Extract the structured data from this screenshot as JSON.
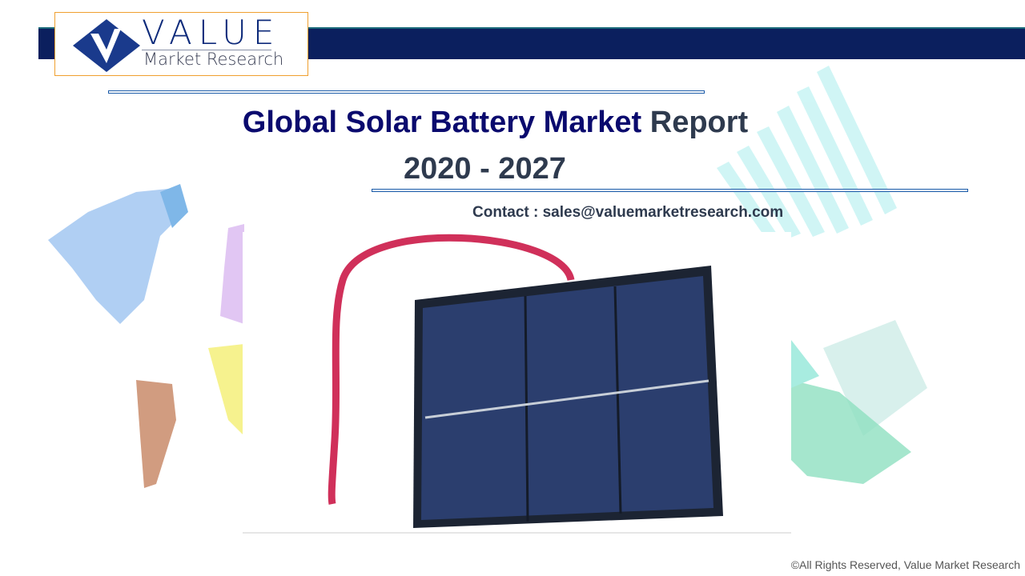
{
  "logo": {
    "brand": "VALUE",
    "subtitle": "Market Research"
  },
  "title": {
    "main": "Global Solar Battery Market",
    "suffix": "Report",
    "years": "2020 - 2027"
  },
  "contact": "Contact : sales@valuemarketresearch.com",
  "footer": "©All Rights Reserved, Value Market Research",
  "colors": {
    "navy_bar": "#0b1f5e",
    "title_navy": "#0a0a6e",
    "title_gray": "#2e3a4e",
    "logo_border": "#f0a030"
  }
}
